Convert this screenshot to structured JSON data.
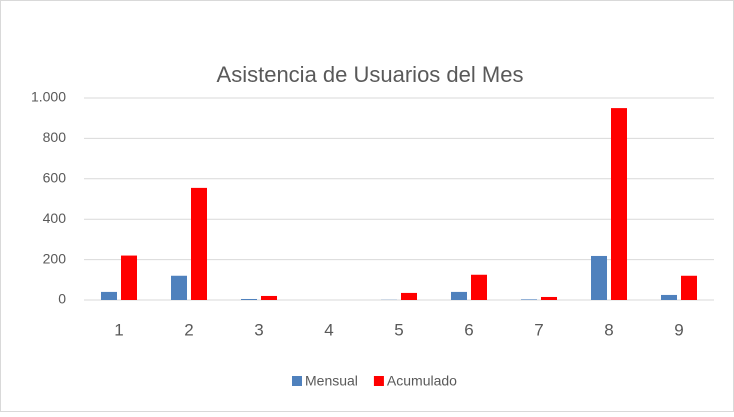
{
  "chart_data": {
    "type": "bar",
    "title": "Asistencia de Usuarios del Mes",
    "categories": [
      "1",
      "2",
      "3",
      "4",
      "5",
      "6",
      "7",
      "8",
      "9"
    ],
    "series": [
      {
        "name": "Mensual",
        "color": "#4f81bd",
        "values": [
          40,
          120,
          5,
          0,
          1,
          40,
          3,
          218,
          25
        ]
      },
      {
        "name": "Acumulado",
        "color": "#ff0000",
        "values": [
          220,
          555,
          20,
          0,
          35,
          125,
          15,
          950,
          120
        ]
      }
    ],
    "ylim": [
      0,
      1000
    ],
    "yticks": [
      0,
      200,
      400,
      600,
      800,
      {
        "value": 1000,
        "label": "1.000"
      }
    ],
    "grid": true,
    "legend": "bottom"
  }
}
